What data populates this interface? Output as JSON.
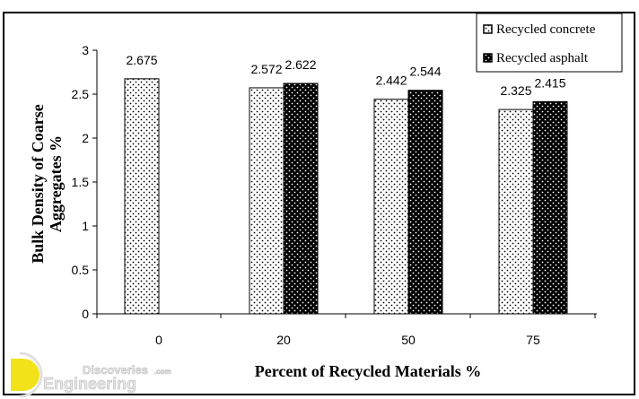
{
  "chart_data": {
    "type": "bar",
    "categories": [
      "0",
      "20",
      "50",
      "75"
    ],
    "series": [
      {
        "name": "Recycled concrete",
        "values": [
          2.675,
          2.572,
          2.442,
          2.325
        ],
        "pattern": "white-with-black-dots"
      },
      {
        "name": "Recycled asphalt",
        "values": [
          null,
          2.622,
          2.544,
          2.415
        ],
        "pattern": "black-with-white-dots"
      }
    ],
    "data_labels": {
      "concrete": [
        "2.675",
        "2.572",
        "2.442",
        "2.325"
      ],
      "asphalt": [
        "",
        "2.622",
        "2.544",
        "2.415"
      ]
    },
    "xlabel": "Percent of Recycled Materials %",
    "ylabel_lines": [
      "Bulk Density of Coarse",
      "Aggregates %"
    ],
    "ylim": [
      0,
      3
    ],
    "yticks": [
      "0",
      "0.5",
      "1",
      "1.5",
      "2",
      "2.5",
      "3"
    ],
    "grid": false,
    "legend_placement": "top-right"
  },
  "watermark": {
    "line1": "Discoveries",
    "suffix": ".com",
    "line2": "Engineering",
    "logo_color": "#f2e21a"
  }
}
